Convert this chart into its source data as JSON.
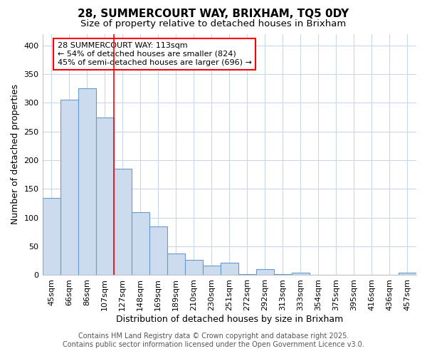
{
  "title": "28, SUMMERCOURT WAY, BRIXHAM, TQ5 0DY",
  "subtitle": "Size of property relative to detached houses in Brixham",
  "xlabel": "Distribution of detached houses by size in Brixham",
  "ylabel": "Number of detached properties",
  "bar_labels": [
    "45sqm",
    "66sqm",
    "86sqm",
    "107sqm",
    "127sqm",
    "148sqm",
    "169sqm",
    "189sqm",
    "210sqm",
    "230sqm",
    "251sqm",
    "272sqm",
    "292sqm",
    "313sqm",
    "333sqm",
    "354sqm",
    "375sqm",
    "395sqm",
    "416sqm",
    "436sqm",
    "457sqm"
  ],
  "bar_values": [
    135,
    305,
    325,
    275,
    185,
    110,
    85,
    38,
    27,
    17,
    22,
    2,
    10,
    2,
    4,
    1,
    0,
    0,
    0,
    0,
    4
  ],
  "bar_color": "#ccdcee",
  "bar_edge_color": "#6699cc",
  "bar_edge_width": 0.8,
  "red_line_x": 3.5,
  "annotation_text": "28 SUMMERCOURT WAY: 113sqm\n← 54% of detached houses are smaller (824)\n45% of semi-detached houses are larger (696) →",
  "ylim": [
    0,
    420
  ],
  "yticks": [
    0,
    50,
    100,
    150,
    200,
    250,
    300,
    350,
    400
  ],
  "footer_line1": "Contains HM Land Registry data © Crown copyright and database right 2025.",
  "footer_line2": "Contains public sector information licensed under the Open Government Licence v3.0.",
  "bg_color": "#ffffff",
  "plot_bg_color": "#ffffff",
  "grid_color": "#c8d8e8",
  "title_fontsize": 11,
  "subtitle_fontsize": 9.5,
  "axis_label_fontsize": 9,
  "tick_fontsize": 8,
  "annotation_fontsize": 8,
  "footer_fontsize": 7
}
